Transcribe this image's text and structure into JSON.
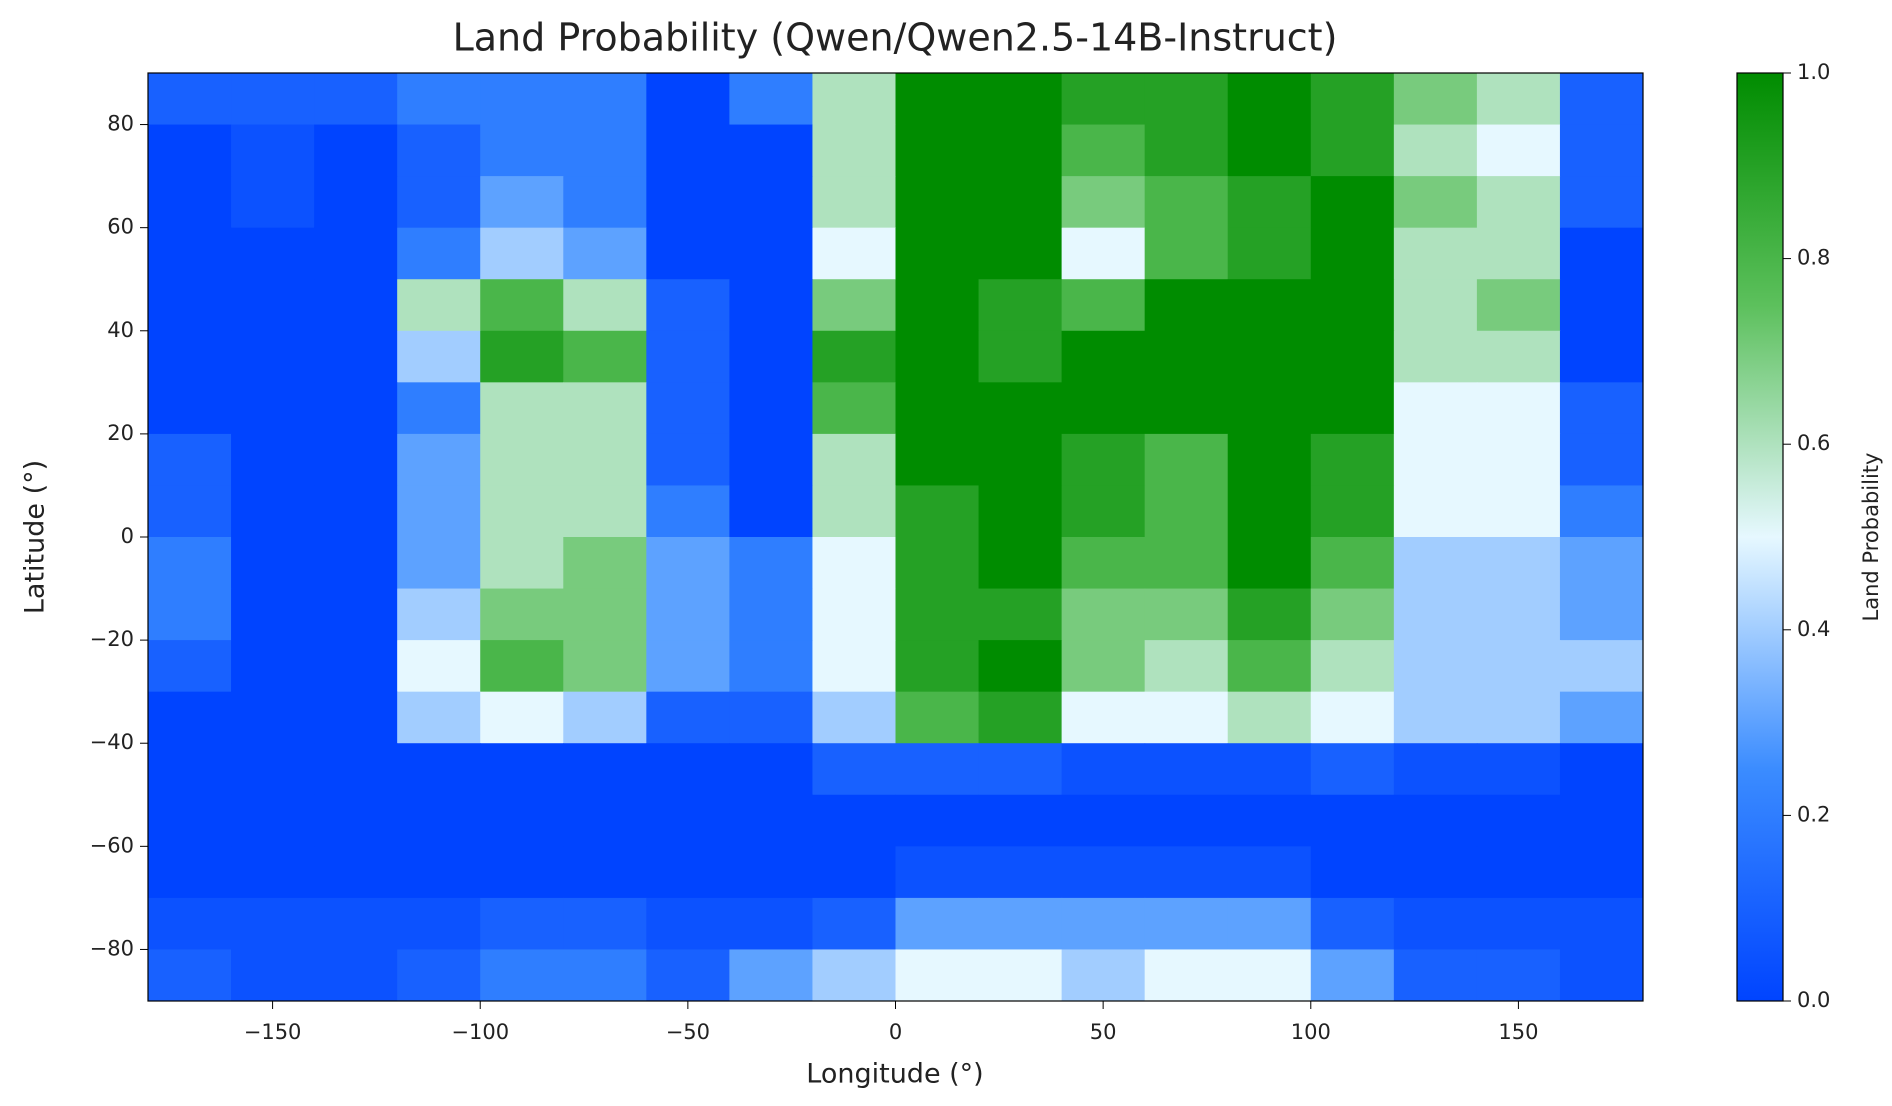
{
  "chart_data": {
    "type": "heatmap",
    "title": "Land Probability (Qwen/Qwen2.5-14B-Instruct)",
    "x_label": "Longitude (°)",
    "y_label": "Latitude (°)",
    "colorbar_label": "Land Probability",
    "x": [
      -170,
      -150,
      -130,
      -110,
      -90,
      -70,
      -50,
      -30,
      -10,
      10,
      30,
      50,
      70,
      90,
      110,
      130,
      150,
      170
    ],
    "y": [
      85,
      75,
      65,
      55,
      45,
      35,
      25,
      15,
      5,
      -5,
      -15,
      -25,
      -35,
      -45,
      -55,
      -65,
      -75,
      -85
    ],
    "z": [
      [
        0.1,
        0.1,
        0.1,
        0.2,
        0.2,
        0.2,
        0.0,
        0.2,
        0.6,
        1.0,
        1.0,
        0.9,
        0.9,
        1.0,
        0.9,
        0.7,
        0.6,
        0.1
      ],
      [
        0.0,
        0.05,
        0.0,
        0.1,
        0.2,
        0.2,
        0.0,
        0.0,
        0.6,
        1.0,
        1.0,
        0.8,
        0.9,
        1.0,
        0.9,
        0.6,
        0.5,
        0.1
      ],
      [
        0.0,
        0.05,
        0.0,
        0.1,
        0.3,
        0.2,
        0.0,
        0.0,
        0.6,
        1.0,
        1.0,
        0.7,
        0.8,
        0.9,
        1.0,
        0.7,
        0.6,
        0.1
      ],
      [
        0.0,
        0.0,
        0.0,
        0.2,
        0.4,
        0.3,
        0.0,
        0.0,
        0.5,
        1.0,
        1.0,
        0.5,
        0.8,
        0.9,
        1.0,
        0.6,
        0.6,
        0.0
      ],
      [
        0.0,
        0.0,
        0.0,
        0.6,
        0.8,
        0.6,
        0.1,
        0.0,
        0.7,
        1.0,
        0.9,
        0.8,
        1.0,
        1.0,
        1.0,
        0.6,
        0.7,
        0.0
      ],
      [
        0.0,
        0.0,
        0.0,
        0.4,
        0.9,
        0.8,
        0.1,
        0.0,
        0.9,
        1.0,
        0.9,
        1.0,
        1.0,
        1.0,
        1.0,
        0.6,
        0.6,
        0.0
      ],
      [
        0.0,
        0.0,
        0.0,
        0.2,
        0.6,
        0.6,
        0.1,
        0.0,
        0.8,
        1.0,
        1.0,
        1.0,
        1.0,
        1.0,
        1.0,
        0.5,
        0.5,
        0.1
      ],
      [
        0.1,
        0.0,
        0.0,
        0.3,
        0.6,
        0.6,
        0.1,
        0.0,
        0.6,
        1.0,
        1.0,
        0.9,
        0.8,
        1.0,
        0.9,
        0.5,
        0.5,
        0.1
      ],
      [
        0.1,
        0.0,
        0.0,
        0.3,
        0.6,
        0.6,
        0.2,
        0.0,
        0.6,
        0.9,
        1.0,
        0.9,
        0.8,
        1.0,
        0.9,
        0.5,
        0.5,
        0.2
      ],
      [
        0.2,
        0.0,
        0.0,
        0.3,
        0.6,
        0.7,
        0.3,
        0.2,
        0.5,
        0.9,
        1.0,
        0.8,
        0.8,
        1.0,
        0.8,
        0.4,
        0.4,
        0.3
      ],
      [
        0.2,
        0.0,
        0.0,
        0.4,
        0.7,
        0.7,
        0.3,
        0.2,
        0.5,
        0.9,
        0.9,
        0.7,
        0.7,
        0.9,
        0.7,
        0.4,
        0.4,
        0.3
      ],
      [
        0.1,
        0.0,
        0.0,
        0.5,
        0.8,
        0.7,
        0.3,
        0.2,
        0.5,
        0.9,
        1.0,
        0.7,
        0.6,
        0.8,
        0.6,
        0.4,
        0.4,
        0.4
      ],
      [
        0.0,
        0.0,
        0.0,
        0.4,
        0.5,
        0.4,
        0.1,
        0.1,
        0.4,
        0.8,
        0.9,
        0.5,
        0.5,
        0.6,
        0.5,
        0.4,
        0.4,
        0.3
      ],
      [
        0.0,
        0.0,
        0.0,
        0.0,
        0.0,
        0.0,
        0.0,
        0.0,
        0.1,
        0.1,
        0.1,
        0.05,
        0.05,
        0.05,
        0.1,
        0.05,
        0.05,
        0.0
      ],
      [
        0.0,
        0.0,
        0.0,
        0.0,
        0.0,
        0.0,
        0.0,
        0.0,
        0.0,
        0.0,
        0.0,
        0.0,
        0.0,
        0.0,
        0.0,
        0.0,
        0.0,
        0.0
      ],
      [
        0.0,
        0.0,
        0.0,
        0.0,
        0.0,
        0.0,
        0.0,
        0.0,
        0.0,
        0.05,
        0.05,
        0.05,
        0.05,
        0.05,
        0.0,
        0.0,
        0.0,
        0.0
      ],
      [
        0.05,
        0.05,
        0.05,
        0.05,
        0.1,
        0.1,
        0.05,
        0.05,
        0.1,
        0.3,
        0.3,
        0.3,
        0.3,
        0.3,
        0.1,
        0.05,
        0.05,
        0.05
      ],
      [
        0.1,
        0.05,
        0.05,
        0.1,
        0.2,
        0.2,
        0.1,
        0.3,
        0.4,
        0.5,
        0.5,
        0.4,
        0.5,
        0.5,
        0.3,
        0.1,
        0.1,
        0.05
      ]
    ],
    "colormap": [
      "#0044ff",
      "#3b8cff",
      "#e6f8ff",
      "#5cc05c",
      "#008c00"
    ],
    "zlim": [
      0,
      1
    ],
    "zticks": [
      {
        "value": 0,
        "label": "0.0"
      },
      0.2,
      0.4,
      0.6,
      0.8,
      {
        "value": 1,
        "label": "1.0"
      }
    ],
    "xlim": [
      -180,
      180
    ],
    "xticks": [
      {
        "value": -150,
        "label": "−150"
      },
      {
        "value": -100,
        "label": "−100"
      },
      {
        "value": -50,
        "label": "−50"
      },
      0,
      50,
      100,
      150
    ],
    "ylim": [
      -90,
      90
    ],
    "yticks": [
      {
        "value": -80,
        "label": "−80"
      },
      {
        "value": -60,
        "label": "−60"
      },
      {
        "value": -40,
        "label": "−40"
      },
      {
        "value": -20,
        "label": "−20"
      },
      0,
      20,
      40,
      60,
      80
    ]
  }
}
